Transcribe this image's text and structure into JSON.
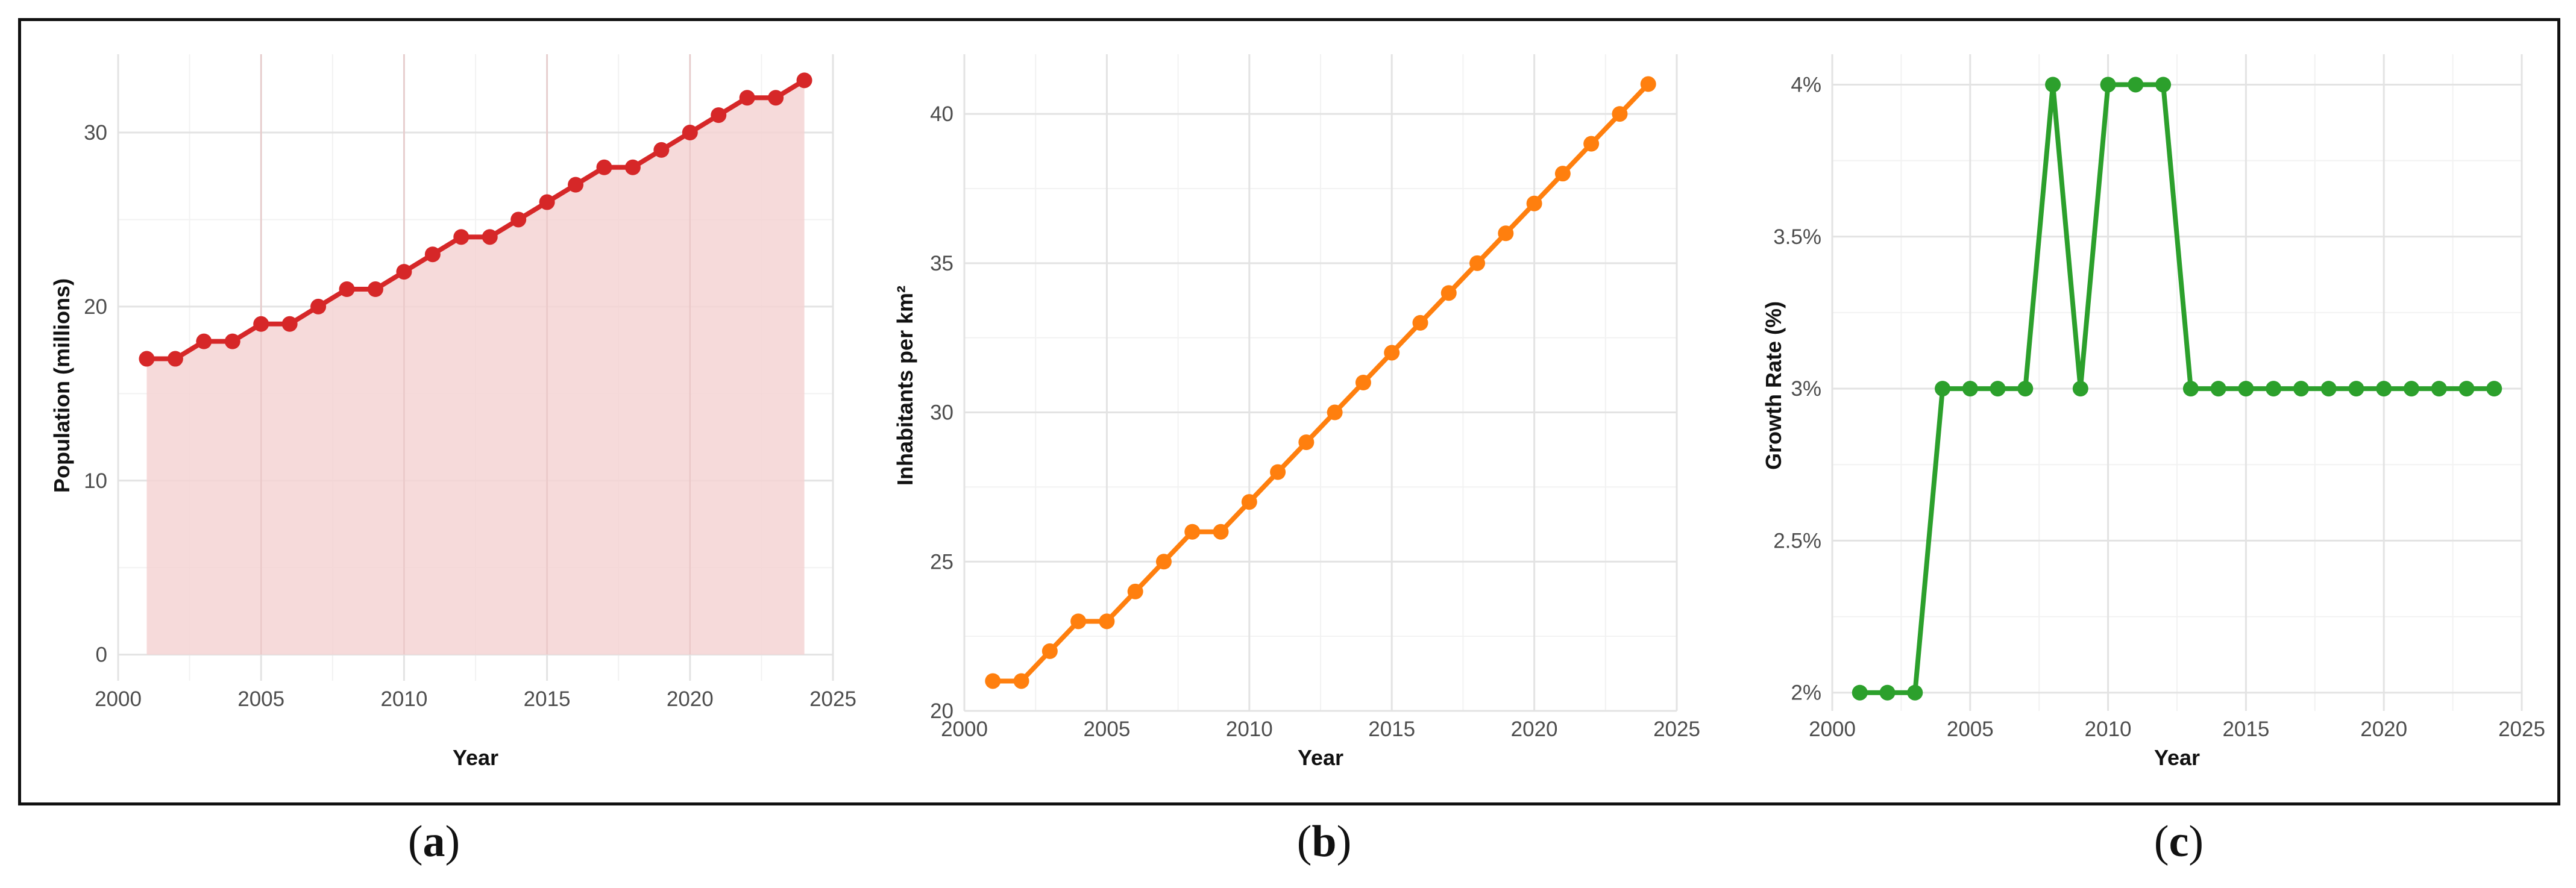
{
  "figure": {
    "captions": [
      {
        "open": "(",
        "letter": "a",
        "close": ")"
      },
      {
        "open": "(",
        "letter": "b",
        "close": ")"
      },
      {
        "open": "(",
        "letter": "c",
        "close": ")"
      }
    ]
  },
  "chart_data": [
    {
      "type": "area",
      "title": "",
      "xlabel": "Year",
      "ylabel": "Population (millions)",
      "xlim": [
        2000,
        2025
      ],
      "ylim": [
        -1.5,
        34.5
      ],
      "x_ticks": [
        2000,
        2005,
        2010,
        2015,
        2020,
        2025
      ],
      "y_ticks": [
        0,
        10,
        20,
        30
      ],
      "y_tick_labels": [
        "0",
        "10",
        "20",
        "30"
      ],
      "grid": true,
      "colors": {
        "line": "#d62728",
        "fill": "#f5d3d3"
      },
      "series": [
        {
          "x": [
            2001,
            2002,
            2003,
            2004,
            2005,
            2006,
            2007,
            2008,
            2009,
            2010,
            2011,
            2012,
            2013,
            2014,
            2015,
            2016,
            2017,
            2018,
            2019,
            2020,
            2021,
            2022,
            2023,
            2024
          ],
          "values": [
            17,
            17,
            18,
            18,
            19,
            19,
            20,
            21,
            21,
            22,
            23,
            24,
            24,
            25,
            26,
            27,
            28,
            28,
            29,
            30,
            31,
            32,
            32,
            33
          ]
        }
      ]
    },
    {
      "type": "line",
      "title": "",
      "xlabel": "Year",
      "ylabel": "Inhabitants per km²",
      "xlim": [
        2000,
        2025
      ],
      "ylim": [
        20,
        42
      ],
      "x_ticks": [
        2000,
        2005,
        2010,
        2015,
        2020,
        2025
      ],
      "y_ticks": [
        20,
        25,
        30,
        35,
        40
      ],
      "y_tick_labels": [
        "20",
        "25",
        "30",
        "35",
        "40"
      ],
      "grid": true,
      "colors": {
        "line": "#ff7f0e"
      },
      "series": [
        {
          "x": [
            2001,
            2002,
            2003,
            2004,
            2005,
            2006,
            2007,
            2008,
            2009,
            2010,
            2011,
            2012,
            2013,
            2014,
            2015,
            2016,
            2017,
            2018,
            2019,
            2020,
            2021,
            2022,
            2023,
            2024
          ],
          "values": [
            21,
            21,
            22,
            23,
            23,
            24,
            25,
            26,
            26,
            27,
            28,
            29,
            30,
            31,
            32,
            33,
            34,
            35,
            36,
            37,
            38,
            39,
            40,
            41
          ]
        }
      ]
    },
    {
      "type": "line",
      "title": "",
      "xlabel": "Year",
      "ylabel": "Growth Rate (%)",
      "xlim": [
        2000,
        2025
      ],
      "ylim": [
        1.94,
        4.1
      ],
      "x_ticks": [
        2000,
        2005,
        2010,
        2015,
        2020,
        2025
      ],
      "y_ticks": [
        2,
        2.5,
        3,
        3.5,
        4
      ],
      "y_tick_labels": [
        "2%",
        "2.5%",
        "3%",
        "3.5%",
        "4%"
      ],
      "grid": true,
      "colors": {
        "line": "#2ca02c"
      },
      "series": [
        {
          "x": [
            2001,
            2002,
            2003,
            2004,
            2005,
            2006,
            2007,
            2008,
            2009,
            2010,
            2011,
            2012,
            2013,
            2014,
            2015,
            2016,
            2017,
            2018,
            2019,
            2020,
            2021,
            2022,
            2023,
            2024
          ],
          "values": [
            2,
            2,
            2,
            3,
            3,
            3,
            3,
            4,
            3,
            4,
            4,
            4,
            3,
            3,
            3,
            3,
            3,
            3,
            3,
            3,
            3,
            3,
            3,
            3
          ]
        }
      ]
    }
  ]
}
